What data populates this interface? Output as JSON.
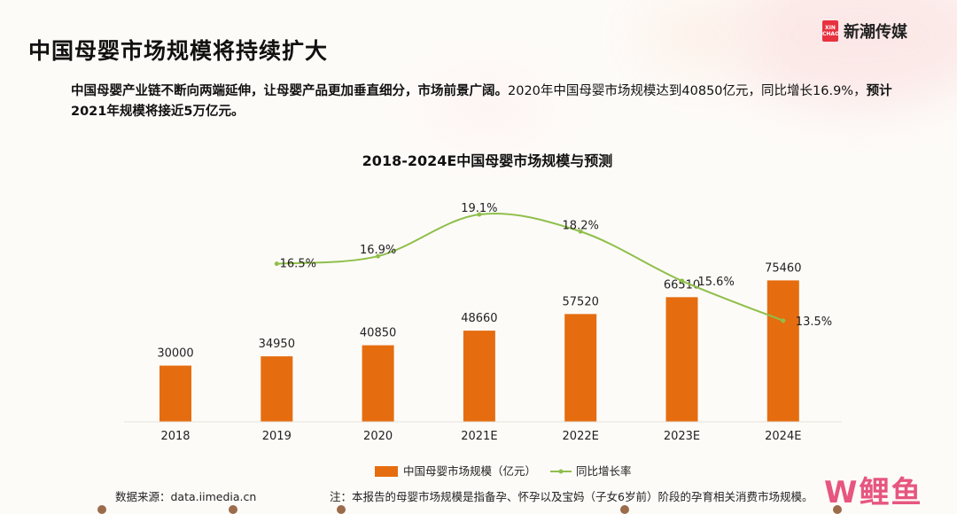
{
  "page": {
    "title": "中国母婴市场规模将持续扩大",
    "brand": {
      "mark_text": "XIN CHAO",
      "name": "新潮传媒"
    },
    "intro": {
      "bold_part": "中国母婴产业链不断向两端延伸，让母婴产品更加垂直细分，市场前景广阔。",
      "normal_part": "2020年中国母婴市场规模达到40850亿元，同比增长16.9%，",
      "bold_tail": "预计2021年规模将接近5万亿元。"
    },
    "source": "数据来源：data.iimedia.cn",
    "note": "注：本报告的母婴市场规模是指备孕、怀孕以及宝妈（子女6岁前）阶段的孕育相关消费市场规模。",
    "watermark": "W鲤鱼"
  },
  "colors": {
    "bar": "#e56d10",
    "line": "#8fbf4a"
  },
  "chart_data": {
    "type": "bar",
    "title": "2018-2024E中国母婴市场规模与预测",
    "categories": [
      "2018",
      "2019",
      "2020",
      "2021E",
      "2022E",
      "2023E",
      "2024E"
    ],
    "series": [
      {
        "name": "中国母婴市场规模（亿元）",
        "type": "bar",
        "values": [
          30000,
          34950,
          40850,
          48660,
          57520,
          66510,
          75460
        ]
      },
      {
        "name": "同比增长率",
        "type": "line",
        "values": [
          null,
          16.5,
          16.9,
          19.1,
          18.2,
          15.6,
          13.5
        ],
        "labels": [
          null,
          "16.5%",
          "16.9%",
          "19.1%",
          "18.2%",
          "15.6%",
          "13.5%"
        ]
      }
    ],
    "legend": "bottom-center",
    "grid": false
  }
}
